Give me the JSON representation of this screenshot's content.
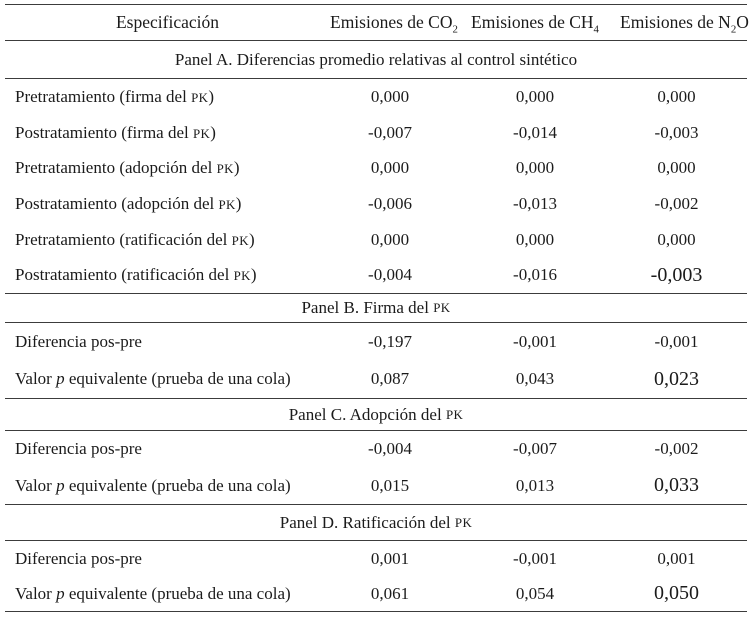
{
  "document": {
    "background_color": "#ffffff",
    "text_color": "#1b1b1b",
    "rule_color": "#3c3c3c"
  },
  "table": {
    "header": {
      "spec": "Especificación",
      "co2": {
        "pre": "Emisiones de CO",
        "sub": "2"
      },
      "ch4": {
        "pre": "Emisiones de CH",
        "sub": "4"
      },
      "n2o": {
        "pre": "Emisiones de N",
        "sub": "2",
        "post": "O"
      }
    },
    "panels": [
      {
        "title": {
          "pre": "Panel A. Diferencias promedio relativas al control sintético"
        },
        "rows": [
          {
            "label": {
              "pre": "Pretratamiento (firma del ",
              "sc": "PK",
              "post": ")"
            },
            "values": [
              "0,000",
              "0,000",
              "0,000"
            ]
          },
          {
            "label": {
              "pre": "Postratamiento (firma del ",
              "sc": "PK",
              "post": ")"
            },
            "values": [
              "-0,007",
              "-0,014",
              "-0,003"
            ]
          },
          {
            "label": {
              "pre": "Pretratamiento (adopción del ",
              "sc": "PK",
              "post": ")"
            },
            "values": [
              "0,000",
              "0,000",
              "0,000"
            ]
          },
          {
            "label": {
              "pre": "Postratamiento (adopción del ",
              "sc": "PK",
              "post": ")"
            },
            "values": [
              "-0,006",
              "-0,013",
              "-0,002"
            ]
          },
          {
            "label": {
              "pre": "Pretratamiento (ratificación del ",
              "sc": "PK",
              "post": ")"
            },
            "values": [
              "0,000",
              "0,000",
              "0,000"
            ]
          },
          {
            "label": {
              "pre": "Postratamiento (ratificación del ",
              "sc": "PK",
              "post": ")"
            },
            "values": [
              "-0,004",
              "-0,016",
              "-0,003"
            ]
          }
        ]
      },
      {
        "title": {
          "pre": "Panel B. Firma del ",
          "sc": "PK"
        },
        "rows": [
          {
            "label": {
              "pre": "Diferencia pos-pre"
            },
            "values": [
              "-0,197",
              "-0,001",
              "-0,001"
            ]
          },
          {
            "label": {
              "pre": "Valor ",
              "i": "p",
              "post": " equivalente (prueba de una cola)"
            },
            "values": [
              "0,087",
              "0,043",
              "0,023"
            ]
          }
        ]
      },
      {
        "title": {
          "pre": "Panel C. Adopción del ",
          "sc": "PK"
        },
        "rows": [
          {
            "label": {
              "pre": "Diferencia pos-pre"
            },
            "values": [
              "-0,004",
              "-0,007",
              "-0,002"
            ]
          },
          {
            "label": {
              "pre": "Valor ",
              "i": "p",
              "post": " equivalente (prueba de una cola)"
            },
            "values": [
              "0,015",
              "0,013",
              "0,033"
            ]
          }
        ]
      },
      {
        "title": {
          "pre": "Panel D. Ratificación del ",
          "sc": "PK"
        },
        "rows": [
          {
            "label": {
              "pre": "Diferencia pos-pre"
            },
            "values": [
              "0,001",
              "-0,001",
              "0,001"
            ]
          },
          {
            "label": {
              "pre": "Valor ",
              "i": "p",
              "post": " equivalente (prueba de una cola)"
            },
            "values": [
              "0,061",
              "0,054",
              "0,050"
            ]
          }
        ]
      }
    ]
  }
}
